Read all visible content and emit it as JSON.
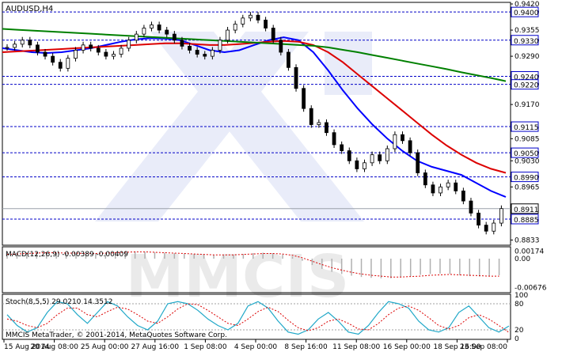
{
  "chart_data": {
    "type": "candlestick",
    "symbol_label": "AUDUSD,H4",
    "x_tick_labels": [
      "15 Aug 2014",
      "20 Aug 08:00",
      "25 Aug 00:00",
      "27 Aug 16:00",
      "1 Sep 08:00",
      "4 Sep 00:00",
      "8 Sep 16:00",
      "11 Sep 08:00",
      "16 Sep 00:00",
      "18 Sep 16:00",
      "23 Sep 08:00"
    ],
    "price_panel": {
      "y_tick_labels": [
        "0.9420",
        "0.9400",
        "0.9355",
        "0.9330",
        "0.9290",
        "0.9240",
        "0.9220",
        "0.9170",
        "0.9115",
        "0.9085",
        "0.9050",
        "0.9030",
        "0.8990",
        "0.8965",
        "0.8911",
        "0.8885",
        "0.8833"
      ],
      "ylim": [
        0.8822,
        0.9422
      ],
      "levels": [
        {
          "value": 0.94,
          "label": "0.9400",
          "color": "#0000c8"
        },
        {
          "value": 0.933,
          "label": "0.9330",
          "color": "#0000c8"
        },
        {
          "value": 0.924,
          "label": "0.9240",
          "color": "#0000c8"
        },
        {
          "value": 0.922,
          "label": "0.9220",
          "color": "#0000c8"
        },
        {
          "value": 0.9115,
          "label": "0.9115",
          "color": "#0000c8"
        },
        {
          "value": 0.905,
          "label": "0.9050",
          "color": "#0000c8"
        },
        {
          "value": 0.899,
          "label": "0.8990",
          "color": "#0000c8"
        },
        {
          "value": 0.8885,
          "label": "0.8885",
          "color": "#0000c8"
        }
      ],
      "current_price": {
        "value": 0.8911,
        "label": "0.8911"
      },
      "close_series": [
        0.9312,
        0.932,
        0.933,
        0.9318,
        0.93,
        0.929,
        0.9275,
        0.926,
        0.9285,
        0.9305,
        0.9318,
        0.931,
        0.93,
        0.929,
        0.9295,
        0.931,
        0.933,
        0.9345,
        0.936,
        0.9368,
        0.9355,
        0.9345,
        0.933,
        0.9315,
        0.9305,
        0.9295,
        0.929,
        0.9305,
        0.933,
        0.9355,
        0.937,
        0.9385,
        0.9392,
        0.938,
        0.936,
        0.933,
        0.93,
        0.9262,
        0.921,
        0.916,
        0.912,
        0.9125,
        0.91,
        0.907,
        0.9055,
        0.903,
        0.901,
        0.9025,
        0.9045,
        0.903,
        0.906,
        0.9095,
        0.908,
        0.905,
        0.9,
        0.897,
        0.895,
        0.8965,
        0.8975,
        0.8955,
        0.893,
        0.89,
        0.887,
        0.8855,
        0.8875,
        0.8911
      ],
      "candle_colors": {
        "body": "#ffffff",
        "wick": "#000000"
      },
      "ma_series": [
        {
          "color": "#0000ff",
          "values": [
            0.931,
            0.9305,
            0.93,
            0.9298,
            0.93,
            0.9305,
            0.931,
            0.9318,
            0.9326,
            0.9332,
            0.9335,
            0.9334,
            0.933,
            0.9318,
            0.9305,
            0.93,
            0.9305,
            0.9318,
            0.933,
            0.9337,
            0.933,
            0.93,
            0.9255,
            0.9205,
            0.916,
            0.912,
            0.9085,
            0.9055,
            0.903,
            0.9015,
            0.9005,
            0.8995,
            0.8975,
            0.8955,
            0.894
          ]
        },
        {
          "color": "#dc0000",
          "values": [
            0.93,
            0.9302,
            0.9304,
            0.9306,
            0.9308,
            0.931,
            0.9312,
            0.9314,
            0.9316,
            0.9318,
            0.932,
            0.9322,
            0.9322,
            0.932,
            0.9318,
            0.9318,
            0.932,
            0.9323,
            0.9326,
            0.9328,
            0.9326,
            0.9318,
            0.93,
            0.9275,
            0.9245,
            0.9215,
            0.9185,
            0.9155,
            0.9125,
            0.9095,
            0.9068,
            0.9045,
            0.9025,
            0.901,
            0.9
          ]
        },
        {
          "color": "#008000",
          "values": [
            0.9358,
            0.9356,
            0.9354,
            0.9352,
            0.935,
            0.9348,
            0.9346,
            0.9344,
            0.9342,
            0.934,
            0.9338,
            0.9336,
            0.9334,
            0.9332,
            0.933,
            0.9328,
            0.9326,
            0.9324,
            0.9322,
            0.932,
            0.9318,
            0.9316,
            0.9312,
            0.9306,
            0.93,
            0.9293,
            0.9286,
            0.9279,
            0.9272,
            0.9265,
            0.9258,
            0.925,
            0.9243,
            0.9236,
            0.9228
          ]
        }
      ]
    },
    "macd_panel": {
      "label": "MACD(12,26,9) -0.00389 -0.00409",
      "y_tick_labels": [
        "0.00174",
        "0.00",
        "-0.00676"
      ],
      "ylim": [
        -0.0078,
        0.0026
      ],
      "histogram": [
        0.0012,
        0.0013,
        0.0014,
        0.0015,
        0.0015,
        0.0014,
        0.0013,
        0.0012,
        0.0012,
        0.0013,
        0.0014,
        0.0015,
        0.0016,
        0.0017,
        0.0016,
        0.0015,
        0.0014,
        0.0013,
        0.0012,
        0.0011,
        0.001,
        0.0009,
        0.0008,
        0.0009,
        0.0011,
        0.0013,
        0.0014,
        0.0013,
        0.001,
        0.0005,
        -0.0005,
        -0.0015,
        -0.0024,
        -0.0031,
        -0.0036,
        -0.004,
        -0.0043,
        -0.0045,
        -0.0046,
        -0.0046,
        -0.0044,
        -0.0041,
        -0.0038,
        -0.0036,
        -0.0035,
        -0.0036,
        -0.0039,
        -0.0041,
        -0.0042,
        -0.0041,
        -0.0039
      ],
      "signal": [
        0.001,
        0.0011,
        0.0012,
        0.0013,
        0.0014,
        0.0014,
        0.0013,
        0.0013,
        0.0012,
        0.0012,
        0.0013,
        0.0014,
        0.0015,
        0.0016,
        0.0016,
        0.0015,
        0.0014,
        0.0013,
        0.0012,
        0.0011,
        0.001,
        0.0009,
        0.0009,
        0.0009,
        0.001,
        0.0011,
        0.0012,
        0.0012,
        0.0011,
        0.0008,
        0.0002,
        -0.0006,
        -0.0014,
        -0.0021,
        -0.0027,
        -0.0032,
        -0.0036,
        -0.0039,
        -0.0041,
        -0.0043,
        -0.0043,
        -0.0042,
        -0.0041,
        -0.0039,
        -0.0038,
        -0.0037,
        -0.0038,
        -0.0039,
        -0.004,
        -0.0041,
        -0.0041
      ]
    },
    "stoch_panel": {
      "label": "Stoch(8,5,5) 29.0210 14.3512",
      "y_tick_labels": [
        "100",
        "80",
        "20",
        "0"
      ],
      "ylim": [
        0,
        100
      ],
      "main": [
        55,
        30,
        15,
        25,
        60,
        85,
        80,
        55,
        35,
        60,
        85,
        75,
        50,
        30,
        20,
        40,
        80,
        85,
        80,
        65,
        45,
        30,
        20,
        35,
        75,
        85,
        70,
        40,
        15,
        10,
        20,
        45,
        60,
        40,
        15,
        10,
        30,
        60,
        85,
        80,
        70,
        40,
        20,
        15,
        25,
        60,
        75,
        50,
        25,
        15,
        29
      ],
      "signal": [
        45,
        40,
        30,
        25,
        35,
        55,
        70,
        70,
        55,
        50,
        62,
        72,
        68,
        55,
        40,
        35,
        50,
        68,
        80,
        78,
        65,
        50,
        35,
        30,
        45,
        62,
        72,
        62,
        42,
        25,
        18,
        25,
        40,
        45,
        35,
        22,
        20,
        35,
        55,
        70,
        75,
        65,
        48,
        30,
        22,
        30,
        48,
        55,
        45,
        30,
        14
      ]
    },
    "footer": "MMCIS MetaTrader, © 2001-2014, MetaQuotes Software Corp.",
    "watermark": "MMCIS"
  }
}
